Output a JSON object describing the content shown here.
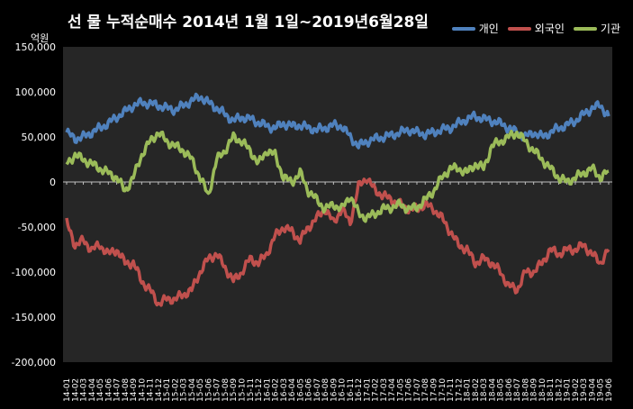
{
  "title": "선 물 누적순매수 2014년 1월 1일~2019년6월28일",
  "unit_label": "억원",
  "colors": {
    "background": "#000000",
    "plot": "#262626",
    "individual": "#4f81bd",
    "foreign": "#c0504d",
    "institution": "#9bbb59"
  },
  "chart_data": {
    "type": "line",
    "title": "선 물 누적순매수 2014년 1월 1일~2019년6월28일",
    "ylabel": "억원",
    "xlabel": "",
    "ylim": [
      -200000,
      150000
    ],
    "yticks": [
      150000,
      100000,
      50000,
      0,
      -50000,
      -100000,
      -150000,
      -200000
    ],
    "ytick_labels": [
      "150,000",
      "100,000",
      "50,000",
      "0",
      "-50,000",
      "-100,000",
      "-150,000",
      "-200,000"
    ],
    "grid": false,
    "legend_position": "top-right",
    "x": [
      "14-01",
      "14-02",
      "14-03",
      "14-04",
      "14-05",
      "14-06",
      "14-07",
      "14-08",
      "14-09",
      "14-10",
      "14-11",
      "14-12",
      "15-01",
      "15-02",
      "15-03",
      "15-04",
      "15-05",
      "15-06",
      "15-07",
      "15-08",
      "15-09",
      "15-10",
      "15-11",
      "15-12",
      "16-01",
      "16-02",
      "16-03",
      "16-04",
      "16-05",
      "16-06",
      "16-07",
      "16-08",
      "16-09",
      "16-10",
      "16-11",
      "16-12",
      "17-01",
      "17-02",
      "17-03",
      "17-04",
      "17-05",
      "17-06",
      "17-07",
      "17-08",
      "17-09",
      "17-10",
      "17-11",
      "17-12",
      "18-01",
      "18-02",
      "18-03",
      "18-04",
      "18-05",
      "18-06",
      "18-07",
      "18-08",
      "18-09",
      "18-10",
      "18-11",
      "18-12",
      "19-01",
      "19-02",
      "19-03",
      "19-04",
      "19-05",
      "19-06"
    ],
    "series": [
      {
        "name": "개인",
        "color": "#4f81bd",
        "values": [
          55000,
          48000,
          50000,
          55000,
          60000,
          65000,
          72000,
          78000,
          85000,
          88000,
          87000,
          85000,
          82000,
          80000,
          85000,
          90000,
          95000,
          88000,
          82000,
          75000,
          68000,
          72000,
          70000,
          66000,
          62000,
          60000,
          65000,
          62000,
          63000,
          60000,
          58000,
          60000,
          63000,
          62000,
          50000,
          40000,
          45000,
          48000,
          50000,
          52000,
          55000,
          58000,
          55000,
          53000,
          55000,
          58000,
          60000,
          65000,
          70000,
          73000,
          70000,
          68000,
          65000,
          60000,
          55000,
          50000,
          55000,
          50000,
          55000,
          60000,
          63000,
          68000,
          75000,
          82000,
          85000,
          73000
        ]
      },
      {
        "name": "외국인",
        "color": "#c0504d",
        "values": [
          -45000,
          -70000,
          -65000,
          -75000,
          -70000,
          -80000,
          -75000,
          -90000,
          -90000,
          -110000,
          -120000,
          -135000,
          -130000,
          -130000,
          -125000,
          -120000,
          -100000,
          -85000,
          -80000,
          -95000,
          -110000,
          -100000,
          -85000,
          -90000,
          -80000,
          -60000,
          -50000,
          -55000,
          -65000,
          -50000,
          -40000,
          -30000,
          -45000,
          -30000,
          -45000,
          -5000,
          5000,
          -10000,
          -15000,
          -20000,
          -25000,
          -30000,
          -30000,
          -25000,
          -30000,
          -40000,
          -55000,
          -70000,
          -75000,
          -90000,
          -85000,
          -90000,
          -100000,
          -115000,
          -120000,
          -100000,
          -100000,
          -90000,
          -75000,
          -80000,
          -75000,
          -75000,
          -70000,
          -80000,
          -90000,
          -75000
        ]
      },
      {
        "name": "기관",
        "color": "#9bbb59",
        "values": [
          20000,
          30000,
          25000,
          20000,
          15000,
          10000,
          5000,
          -10000,
          5000,
          30000,
          45000,
          55000,
          45000,
          40000,
          35000,
          25000,
          5000,
          -15000,
          25000,
          35000,
          50000,
          45000,
          35000,
          20000,
          35000,
          30000,
          5000,
          0,
          10000,
          -10000,
          -20000,
          -30000,
          -25000,
          -30000,
          -15000,
          -35000,
          -40000,
          -35000,
          -30000,
          -28000,
          -25000,
          -30000,
          -28000,
          -20000,
          -10000,
          5000,
          15000,
          15000,
          10000,
          20000,
          15000,
          40000,
          45000,
          50000,
          55000,
          45000,
          35000,
          25000,
          15000,
          5000,
          0,
          5000,
          10000,
          15000,
          5000,
          12000
        ]
      }
    ]
  }
}
